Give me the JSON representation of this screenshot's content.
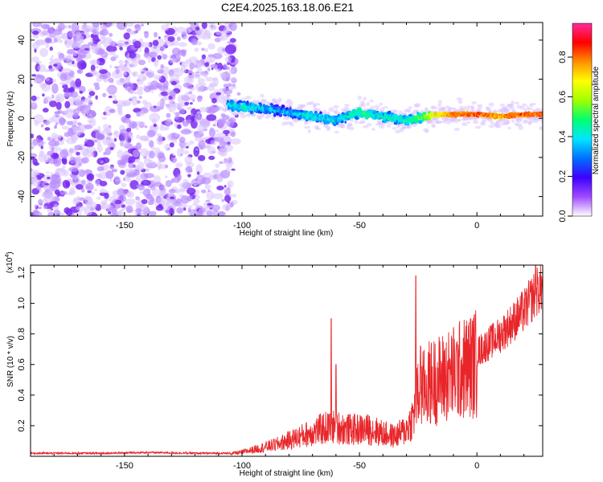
{
  "title": "C2E4.2025.163.18.06.E21",
  "chart_data": [
    {
      "type": "heatmap",
      "name": "spectrogram",
      "xlabel": "Height of straight line (km)",
      "ylabel": "Frequency (Hz)",
      "xlim": [
        -190,
        28
      ],
      "ylim": [
        -50,
        49
      ],
      "xticks": [
        -150,
        -100,
        -50,
        0
      ],
      "xtick_labels": [
        "-150",
        "-100",
        "-50",
        "0"
      ],
      "yticks": [
        40,
        20,
        0,
        -20,
        -40
      ],
      "ytick_labels": [
        "40",
        "20",
        "0",
        "-20",
        "-40"
      ],
      "noise_region_x": [
        -190,
        -103
      ],
      "signal_ridge": {
        "x": [
          -106,
          -100,
          -90,
          -80,
          -70,
          -60,
          -50,
          -40,
          -30,
          -22,
          -15,
          -5,
          0,
          10,
          20,
          28
        ],
        "freq_hz": [
          7,
          6,
          5,
          3,
          1,
          -1,
          3,
          1,
          -1,
          1,
          2,
          2,
          2,
          1,
          2,
          2
        ],
        "amplitude": [
          0.4,
          0.45,
          0.4,
          0.35,
          0.45,
          0.4,
          0.5,
          0.45,
          0.45,
          0.6,
          0.75,
          0.85,
          0.85,
          0.8,
          0.85,
          0.85
        ]
      },
      "colorbar": {
        "label": "Normalized spectral amplitude",
        "range": [
          0,
          0.97
        ],
        "ticks": [
          0.0,
          0.2,
          0.4,
          0.6,
          0.8
        ],
        "tick_labels": [
          "0.0",
          "0.2",
          "0.4",
          "0.6",
          "0.8"
        ],
        "colors": [
          "#ffffff",
          "#a04bff",
          "#3c00ff",
          "#0070ff",
          "#00e6ff",
          "#00ff70",
          "#a0ff00",
          "#ffff00",
          "#ff9000",
          "#ff0000",
          "#ff2a9e"
        ]
      }
    },
    {
      "type": "line",
      "name": "snr",
      "xlabel": "Height of straight line (km)",
      "ylabel": "SNR (10 * v/v)",
      "y_scale_label": "(x10",
      "y_scale_exponent": "4",
      "xlim": [
        -190,
        28
      ],
      "ylim": [
        0,
        1.25
      ],
      "xticks": [
        -150,
        -100,
        -50,
        0
      ],
      "xtick_labels": [
        "-150",
        "-100",
        "-50",
        "0"
      ],
      "yticks": [
        0.2,
        0.4,
        0.6,
        0.8,
        1.0,
        1.2
      ],
      "ytick_labels": [
        "0.2",
        "0.4",
        "0.6",
        "0.8",
        "1.0",
        "1.2"
      ],
      "color": "#e8262a",
      "envelope": {
        "x": [
          -190,
          -160,
          -140,
          -120,
          -105,
          -100,
          -95,
          -90,
          -85,
          -80,
          -75,
          -70,
          -65,
          -60,
          -55,
          -50,
          -45,
          -40,
          -35,
          -30,
          -27,
          -26,
          -25,
          -22,
          -20,
          -15,
          -10,
          -5,
          0,
          5,
          10,
          15,
          20,
          25,
          28
        ],
        "y": [
          0.02,
          0.02,
          0.025,
          0.02,
          0.02,
          0.03,
          0.05,
          0.07,
          0.09,
          0.12,
          0.15,
          0.18,
          0.21,
          0.22,
          0.2,
          0.2,
          0.2,
          0.17,
          0.15,
          0.2,
          0.3,
          0.42,
          0.45,
          0.52,
          0.55,
          0.58,
          0.62,
          0.66,
          0.7,
          0.76,
          0.82,
          0.9,
          0.98,
          1.1,
          1.15
        ]
      },
      "peaks": [
        {
          "x": -62,
          "y": 0.9
        },
        {
          "x": -60,
          "y": 0.6
        },
        {
          "x": -26,
          "y": 1.18
        },
        {
          "x": -24,
          "y": 0.72
        },
        {
          "x": 25,
          "y": 1.25
        }
      ]
    }
  ]
}
